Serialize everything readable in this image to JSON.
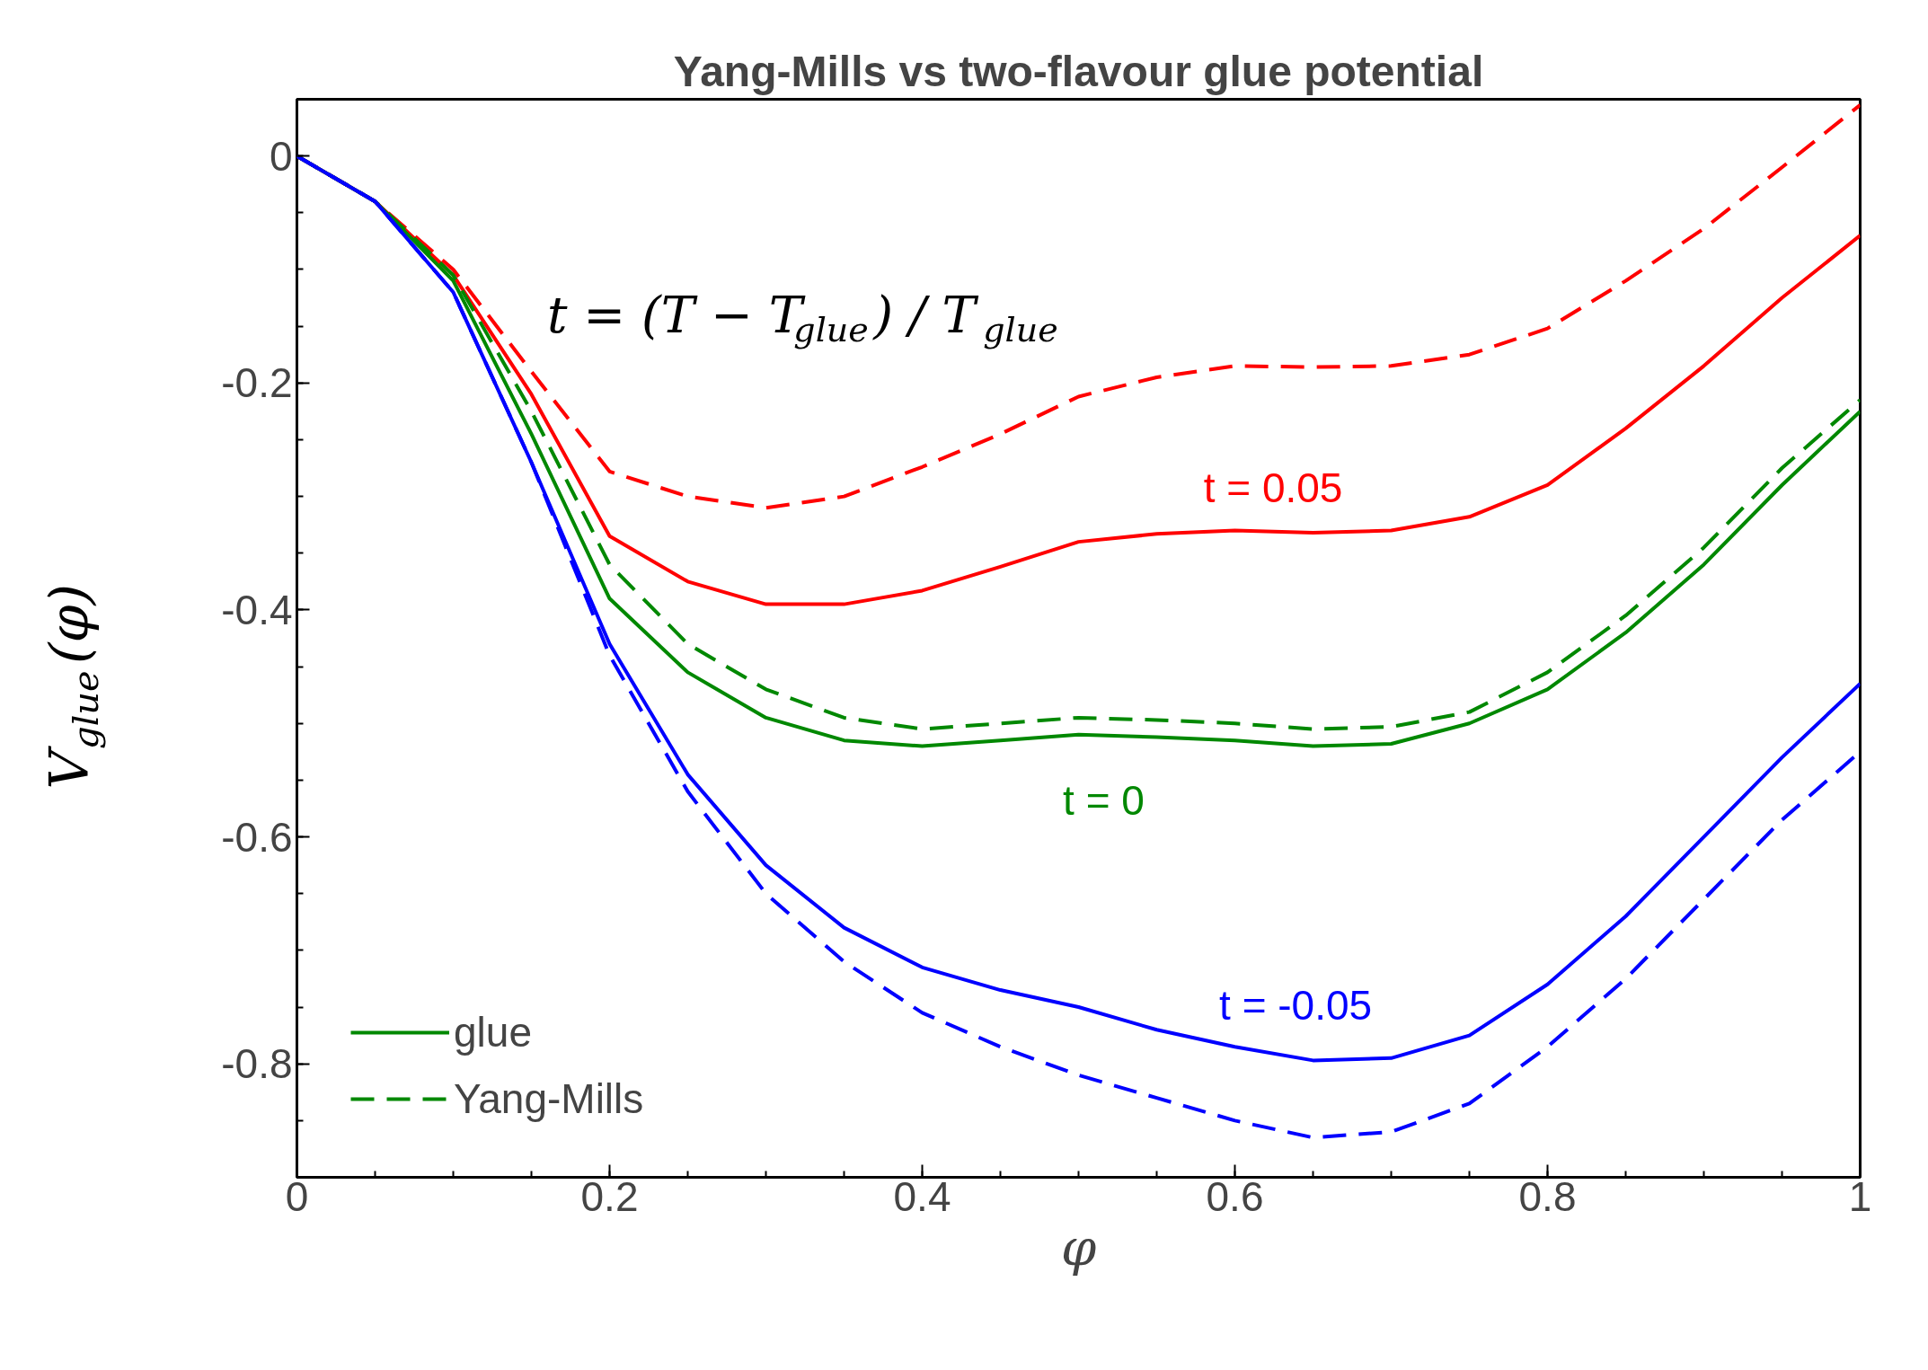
{
  "chart_data": {
    "type": "line",
    "title": "Yang-Mills vs two-flavour glue potential",
    "xlabel": "φ",
    "ylabel": "V$_{glue}$(φ)",
    "xlim": [
      0,
      1
    ],
    "ylim": [
      -0.9,
      0.05
    ],
    "xticks": [
      0,
      0.2,
      0.4,
      0.6,
      0.8,
      1
    ],
    "yticks": [
      -0.8,
      -0.6,
      -0.4,
      -0.2,
      0
    ],
    "x": [
      0,
      0.05,
      0.1,
      0.15,
      0.2,
      0.25,
      0.3,
      0.35,
      0.4,
      0.45,
      0.5,
      0.55,
      0.6,
      0.65,
      0.7,
      0.75,
      0.8,
      0.85,
      0.9,
      0.95,
      1
    ],
    "grid": false,
    "legend": "bottom left",
    "marker": "none",
    "series": [
      {
        "color": "#ff0000",
        "line_style": "dashed",
        "values": [
          0,
          -0.04,
          -0.1,
          -0.19,
          -0.278,
          -0.3,
          -0.31,
          -0.3,
          -0.274,
          -0.245,
          -0.212,
          -0.195,
          -0.185,
          -0.186,
          -0.185,
          -0.175,
          -0.152,
          -0.11,
          -0.064,
          -0.01,
          0.045
        ]
      },
      {
        "color": "#ff0000",
        "line_style": "solid",
        "values": [
          0,
          -0.04,
          -0.105,
          -0.21,
          -0.335,
          -0.375,
          -0.395,
          -0.395,
          -0.383,
          -0.362,
          -0.34,
          -0.333,
          -0.33,
          -0.332,
          -0.33,
          -0.318,
          -0.29,
          -0.24,
          -0.185,
          -0.125,
          -0.07
        ]
      },
      {
        "name": "glue",
        "color": "#008800",
        "line_style": "solid",
        "values": [
          0,
          -0.04,
          -0.11,
          -0.245,
          -0.39,
          -0.455,
          -0.495,
          -0.515,
          -0.52,
          -0.515,
          -0.51,
          -0.512,
          -0.515,
          -0.52,
          -0.518,
          -0.5,
          -0.47,
          -0.42,
          -0.36,
          -0.29,
          -0.225
        ]
      },
      {
        "name": "Yang-Mills",
        "color": "#008800",
        "line_style": "dashed",
        "values": [
          0,
          -0.04,
          -0.105,
          -0.225,
          -0.36,
          -0.43,
          -0.47,
          -0.495,
          -0.505,
          -0.5,
          -0.495,
          -0.497,
          -0.5,
          -0.505,
          -0.503,
          -0.49,
          -0.455,
          -0.405,
          -0.345,
          -0.275,
          -0.215
        ]
      },
      {
        "color": "#0000ff",
        "line_style": "solid",
        "values": [
          0,
          -0.04,
          -0.12,
          -0.27,
          -0.43,
          -0.545,
          -0.625,
          -0.68,
          -0.715,
          -0.735,
          -0.75,
          -0.77,
          -0.785,
          -0.797,
          -0.795,
          -0.775,
          -0.73,
          -0.67,
          -0.6,
          -0.53,
          -0.465
        ]
      },
      {
        "color": "#0000ff",
        "line_style": "dashed",
        "values": [
          0,
          -0.04,
          -0.12,
          -0.27,
          -0.44,
          -0.56,
          -0.65,
          -0.71,
          -0.755,
          -0.785,
          -0.81,
          -0.83,
          -0.85,
          -0.865,
          -0.86,
          -0.835,
          -0.785,
          -0.725,
          -0.655,
          -0.585,
          -0.525
        ]
      }
    ],
    "annotations": [
      "t = 0.05",
      "t = 0",
      "t = -0.05",
      "t = (T − T$_{glue}$) / T$_{glue}$"
    ]
  }
}
